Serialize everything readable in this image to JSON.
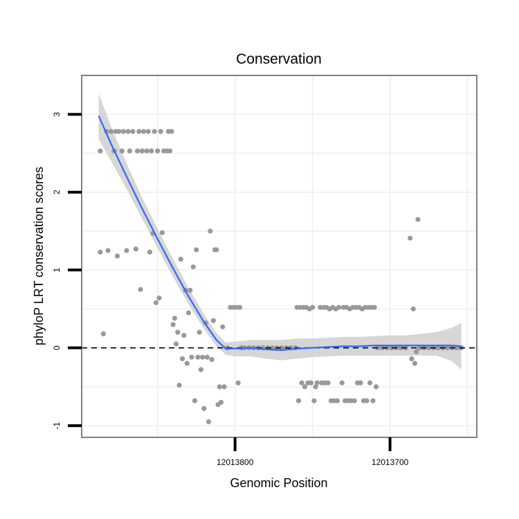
{
  "chart_data": {
    "type": "scatter",
    "title": "Conservation",
    "xlabel": "Genomic Position",
    "ylabel": "phyloP LRT conservation scores",
    "x_reversed": true,
    "xlim": [
      12013899,
      12013644
    ],
    "ylim": [
      -1.15,
      3.5
    ],
    "x_ticks": [
      {
        "value": 12013800,
        "label": "12013800"
      },
      {
        "value": 12013700,
        "label": "12013700"
      }
    ],
    "y_ticks": [
      {
        "value": -1,
        "label": "-1"
      },
      {
        "value": 0,
        "label": "0"
      },
      {
        "value": 1,
        "label": "1"
      },
      {
        "value": 2,
        "label": "2"
      },
      {
        "value": 3,
        "label": "3"
      }
    ],
    "grid": true,
    "reference_line": {
      "y": 0,
      "style": "dashed"
    },
    "colors": {
      "points": "#999999",
      "smooth_line": "#3366ff",
      "confidence_band": "#cccccc",
      "panel_border": "#7f7f7f",
      "grid": "#f2f2f2"
    },
    "points": [
      {
        "x": 12013887,
        "y": 2.53
      },
      {
        "x": 12013887,
        "y": 1.23
      },
      {
        "x": 12013885,
        "y": 0.18
      },
      {
        "x": 12013883,
        "y": 2.78
      },
      {
        "x": 12013882,
        "y": 1.25
      },
      {
        "x": 12013880,
        "y": 2.78
      },
      {
        "x": 12013878,
        "y": 2.53
      },
      {
        "x": 12013877,
        "y": 2.78
      },
      {
        "x": 12013876,
        "y": 1.18
      },
      {
        "x": 12013875,
        "y": 2.78
      },
      {
        "x": 12013873,
        "y": 2.53
      },
      {
        "x": 12013872,
        "y": 2.78
      },
      {
        "x": 12013870,
        "y": 1.25
      },
      {
        "x": 12013869,
        "y": 2.78
      },
      {
        "x": 12013868,
        "y": 2.53
      },
      {
        "x": 12013866,
        "y": 2.78
      },
      {
        "x": 12013864,
        "y": 1.27
      },
      {
        "x": 12013863,
        "y": 2.53
      },
      {
        "x": 12013862,
        "y": 2.78
      },
      {
        "x": 12013861,
        "y": 0.75
      },
      {
        "x": 12013860,
        "y": 2.53
      },
      {
        "x": 12013859,
        "y": 2.78
      },
      {
        "x": 12013857,
        "y": 2.53
      },
      {
        "x": 12013856,
        "y": 2.78
      },
      {
        "x": 12013855,
        "y": 1.23
      },
      {
        "x": 12013854,
        "y": 2.53
      },
      {
        "x": 12013853,
        "y": 1.47
      },
      {
        "x": 12013852,
        "y": 2.78
      },
      {
        "x": 12013851,
        "y": 0.58
      },
      {
        "x": 12013850,
        "y": 2.53
      },
      {
        "x": 12013849,
        "y": 0.64
      },
      {
        "x": 12013848,
        "y": 2.78
      },
      {
        "x": 12013847,
        "y": 1.48
      },
      {
        "x": 12013846,
        "y": 2.53
      },
      {
        "x": 12013844,
        "y": 2.53
      },
      {
        "x": 12013843,
        "y": 2.78
      },
      {
        "x": 12013842,
        "y": 2.53
      },
      {
        "x": 12013841,
        "y": 2.78
      },
      {
        "x": 12013840,
        "y": 0.3
      },
      {
        "x": 12013839,
        "y": 0.38
      },
      {
        "x": 12013838,
        "y": 0.05
      },
      {
        "x": 12013837,
        "y": 0.2
      },
      {
        "x": 12013836,
        "y": -0.48
      },
      {
        "x": 12013835,
        "y": 1.14
      },
      {
        "x": 12013834,
        "y": -0.14
      },
      {
        "x": 12013833,
        "y": 0.16
      },
      {
        "x": 12013832,
        "y": 0.74
      },
      {
        "x": 12013831,
        "y": -0.2
      },
      {
        "x": 12013830,
        "y": 0.45
      },
      {
        "x": 12013829,
        "y": 0.74
      },
      {
        "x": 12013828,
        "y": -0.12
      },
      {
        "x": 12013827,
        "y": 1.04
      },
      {
        "x": 12013826,
        "y": -0.68
      },
      {
        "x": 12013825,
        "y": 1.26
      },
      {
        "x": 12013824,
        "y": -0.12
      },
      {
        "x": 12013823,
        "y": 0.2
      },
      {
        "x": 12013822,
        "y": -0.28
      },
      {
        "x": 12013821,
        "y": -0.12
      },
      {
        "x": 12013820,
        "y": -0.78
      },
      {
        "x": 12013819,
        "y": 0.32
      },
      {
        "x": 12013818,
        "y": -0.12
      },
      {
        "x": 12013817,
        "y": -0.95
      },
      {
        "x": 12013816,
        "y": 1.5
      },
      {
        "x": 12013815,
        "y": -0.15
      },
      {
        "x": 12013814,
        "y": 0.35
      },
      {
        "x": 12013813,
        "y": 1.26
      },
      {
        "x": 12013812,
        "y": 1.26
      },
      {
        "x": 12013811,
        "y": -0.73
      },
      {
        "x": 12013810,
        "y": -0.5
      },
      {
        "x": 12013809,
        "y": -0.7
      },
      {
        "x": 12013808,
        "y": 0.27
      },
      {
        "x": 12013807,
        "y": -0.5
      },
      {
        "x": 12013805,
        "y": 0.0
      },
      {
        "x": 12013803,
        "y": 0.52
      },
      {
        "x": 12013801,
        "y": 0.52
      },
      {
        "x": 12013799,
        "y": 0.52
      },
      {
        "x": 12013798,
        "y": -0.45
      },
      {
        "x": 12013797,
        "y": 0.52
      },
      {
        "x": 12013796,
        "y": 0.0
      },
      {
        "x": 12013794,
        "y": 0.0
      },
      {
        "x": 12013791,
        "y": 0.0
      },
      {
        "x": 12013788,
        "y": 0.0
      },
      {
        "x": 12013785,
        "y": 0.0
      },
      {
        "x": 12013782,
        "y": 0.0
      },
      {
        "x": 12013779,
        "y": 0.0
      },
      {
        "x": 12013776,
        "y": 0.0
      },
      {
        "x": 12013773,
        "y": 0.0
      },
      {
        "x": 12013770,
        "y": 0.0
      },
      {
        "x": 12013767,
        "y": 0.0
      },
      {
        "x": 12013764,
        "y": 0.0
      },
      {
        "x": 12013761,
        "y": 0.0
      },
      {
        "x": 12013760,
        "y": 0.52
      },
      {
        "x": 12013759,
        "y": -0.68
      },
      {
        "x": 12013758,
        "y": 0.52
      },
      {
        "x": 12013757,
        "y": -0.45
      },
      {
        "x": 12013756,
        "y": 0.52
      },
      {
        "x": 12013755,
        "y": -0.5
      },
      {
        "x": 12013754,
        "y": 0.52
      },
      {
        "x": 12013753,
        "y": -0.45
      },
      {
        "x": 12013752,
        "y": 0.5
      },
      {
        "x": 12013751,
        "y": -0.45
      },
      {
        "x": 12013750,
        "y": 0.52
      },
      {
        "x": 12013749,
        "y": -0.68
      },
      {
        "x": 12013748,
        "y": -0.5
      },
      {
        "x": 12013747,
        "y": -0.45
      },
      {
        "x": 12013745,
        "y": 0.52
      },
      {
        "x": 12013744,
        "y": -0.45
      },
      {
        "x": 12013743,
        "y": 0.52
      },
      {
        "x": 12013742,
        "y": -0.45
      },
      {
        "x": 12013741,
        "y": 0.52
      },
      {
        "x": 12013740,
        "y": -0.45
      },
      {
        "x": 12013739,
        "y": 0.5
      },
      {
        "x": 12013738,
        "y": -0.68
      },
      {
        "x": 12013737,
        "y": 0.52
      },
      {
        "x": 12013736,
        "y": -0.68
      },
      {
        "x": 12013735,
        "y": 0.5
      },
      {
        "x": 12013734,
        "y": -0.68
      },
      {
        "x": 12013733,
        "y": 0.52
      },
      {
        "x": 12013731,
        "y": -0.45
      },
      {
        "x": 12013730,
        "y": 0.52
      },
      {
        "x": 12013729,
        "y": -0.68
      },
      {
        "x": 12013728,
        "y": 0.52
      },
      {
        "x": 12013727,
        "y": -0.68
      },
      {
        "x": 12013726,
        "y": 0.5
      },
      {
        "x": 12013725,
        "y": -0.68
      },
      {
        "x": 12013724,
        "y": 0.52
      },
      {
        "x": 12013723,
        "y": -0.68
      },
      {
        "x": 12013722,
        "y": 0.52
      },
      {
        "x": 12013721,
        "y": -0.45
      },
      {
        "x": 12013720,
        "y": 0.52
      },
      {
        "x": 12013719,
        "y": -0.45
      },
      {
        "x": 12013718,
        "y": 0.5
      },
      {
        "x": 12013717,
        "y": -0.68
      },
      {
        "x": 12013716,
        "y": 0.52
      },
      {
        "x": 12013715,
        "y": -0.68
      },
      {
        "x": 12013714,
        "y": 0.52
      },
      {
        "x": 12013713,
        "y": -0.45
      },
      {
        "x": 12013712,
        "y": 0.52
      },
      {
        "x": 12013711,
        "y": -0.68
      },
      {
        "x": 12013710,
        "y": 0.52
      },
      {
        "x": 12013709,
        "y": -0.5
      },
      {
        "x": 12013708,
        "y": 0.0
      },
      {
        "x": 12013705,
        "y": 0.0
      },
      {
        "x": 12013702,
        "y": 0.0
      },
      {
        "x": 12013699,
        "y": 0.0
      },
      {
        "x": 12013696,
        "y": 0.0
      },
      {
        "x": 12013693,
        "y": 0.0
      },
      {
        "x": 12013690,
        "y": 0.0
      },
      {
        "x": 12013687,
        "y": 1.41
      },
      {
        "x": 12013686,
        "y": -0.14
      },
      {
        "x": 12013685,
        "y": 0.5
      },
      {
        "x": 12013684,
        "y": -0.2
      },
      {
        "x": 12013683,
        "y": -0.05
      },
      {
        "x": 12013682,
        "y": 1.65
      },
      {
        "x": 12013681,
        "y": 0.0
      },
      {
        "x": 12013678,
        "y": 0.0
      },
      {
        "x": 12013675,
        "y": 0.0
      },
      {
        "x": 12013672,
        "y": 0.0
      },
      {
        "x": 12013669,
        "y": 0.0
      },
      {
        "x": 12013666,
        "y": 0.0
      },
      {
        "x": 12013663,
        "y": 0.0
      },
      {
        "x": 12013660,
        "y": 0.0
      },
      {
        "x": 12013657,
        "y": 0.0
      },
      {
        "x": 12013654,
        "y": 0.0
      }
    ],
    "smooth": {
      "method": "loess",
      "x": [
        12013888,
        12013880,
        12013870,
        12013860,
        12013850,
        12013840,
        12013830,
        12013820,
        12013812,
        12013806,
        12013800,
        12013790,
        12013780,
        12013770,
        12013760,
        12013750,
        12013740,
        12013730,
        12013720,
        12013710,
        12013700,
        12013690,
        12013680,
        12013670,
        12013660,
        12013654
      ],
      "y": [
        2.98,
        2.62,
        2.2,
        1.79,
        1.4,
        1.02,
        0.66,
        0.33,
        0.1,
        -0.01,
        -0.01,
        0.0,
        -0.02,
        -0.03,
        -0.01,
        0.0,
        0.01,
        0.02,
        0.02,
        0.03,
        0.03,
        0.03,
        0.03,
        0.03,
        0.03,
        0.02
      ],
      "lower": [
        2.68,
        2.4,
        2.04,
        1.66,
        1.28,
        0.91,
        0.56,
        0.24,
        0.02,
        -0.09,
        -0.11,
        -0.11,
        -0.14,
        -0.16,
        -0.14,
        -0.12,
        -0.11,
        -0.1,
        -0.1,
        -0.1,
        -0.1,
        -0.1,
        -0.1,
        -0.1,
        -0.17,
        -0.28
      ],
      "upper": [
        3.27,
        2.84,
        2.37,
        1.93,
        1.53,
        1.14,
        0.77,
        0.43,
        0.19,
        0.07,
        0.08,
        0.1,
        0.1,
        0.1,
        0.12,
        0.12,
        0.13,
        0.14,
        0.14,
        0.15,
        0.16,
        0.16,
        0.18,
        0.2,
        0.26,
        0.32
      ]
    }
  }
}
